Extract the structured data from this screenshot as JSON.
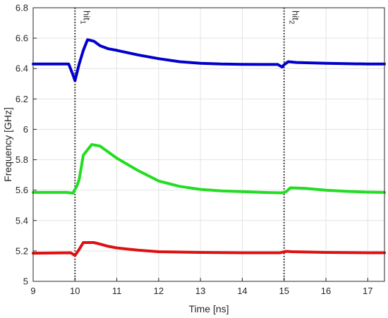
{
  "chart_data": {
    "type": "line",
    "title": "",
    "xlabel": "Time [ns]",
    "ylabel": "Frequency [GHz]",
    "xlim": [
      9,
      17.4
    ],
    "ylim": [
      5,
      6.8
    ],
    "xticks": [
      9,
      10,
      11,
      12,
      13,
      14,
      15,
      16,
      17
    ],
    "yticks": [
      5,
      5.2,
      5.4,
      5.6,
      5.8,
      6,
      6.2,
      6.4,
      6.6,
      6.8
    ],
    "xtick_labels": [
      "9",
      "10",
      "11",
      "12",
      "13",
      "14",
      "15",
      "16",
      "17"
    ],
    "ytick_labels": [
      "5",
      "5.2",
      "5.4",
      "5.6",
      "5.8",
      "6",
      "6.2",
      "6.4",
      "6.6",
      "6.8"
    ],
    "grid": true,
    "legend": "none",
    "annotations": [
      {
        "text": "hit",
        "sub": "1",
        "x": 10
      },
      {
        "text": "hit",
        "sub": "2",
        "x": 15
      }
    ],
    "series": [
      {
        "color": "#0000cc",
        "points": [
          [
            9,
            6.43
          ],
          [
            9.85,
            6.43
          ],
          [
            9.95,
            6.36
          ],
          [
            10.0,
            6.32
          ],
          [
            10.1,
            6.43
          ],
          [
            10.2,
            6.52
          ],
          [
            10.3,
            6.59
          ],
          [
            10.45,
            6.58
          ],
          [
            10.6,
            6.55
          ],
          [
            10.8,
            6.53
          ],
          [
            11,
            6.52
          ],
          [
            11.5,
            6.49
          ],
          [
            12,
            6.465
          ],
          [
            12.5,
            6.445
          ],
          [
            13,
            6.435
          ],
          [
            13.5,
            6.43
          ],
          [
            14,
            6.428
          ],
          [
            14.5,
            6.427
          ],
          [
            14.85,
            6.427
          ],
          [
            14.95,
            6.41
          ],
          [
            15.0,
            6.425
          ],
          [
            15.1,
            6.445
          ],
          [
            15.3,
            6.44
          ],
          [
            16,
            6.435
          ],
          [
            17,
            6.43
          ],
          [
            17.4,
            6.43
          ]
        ]
      },
      {
        "color": "#22dd22",
        "points": [
          [
            9,
            5.585
          ],
          [
            9.8,
            5.585
          ],
          [
            9.95,
            5.58
          ],
          [
            10.05,
            5.63
          ],
          [
            10.1,
            5.67
          ],
          [
            10.2,
            5.83
          ],
          [
            10.4,
            5.9
          ],
          [
            10.6,
            5.89
          ],
          [
            10.8,
            5.85
          ],
          [
            11,
            5.81
          ],
          [
            11.5,
            5.73
          ],
          [
            12,
            5.66
          ],
          [
            12.5,
            5.625
          ],
          [
            13,
            5.605
          ],
          [
            13.5,
            5.595
          ],
          [
            14,
            5.59
          ],
          [
            14.5,
            5.585
          ],
          [
            14.95,
            5.582
          ],
          [
            15.05,
            5.59
          ],
          [
            15.15,
            5.615
          ],
          [
            15.5,
            5.612
          ],
          [
            16,
            5.6
          ],
          [
            16.5,
            5.592
          ],
          [
            17,
            5.587
          ],
          [
            17.4,
            5.585
          ]
        ]
      },
      {
        "color": "#dd1111",
        "points": [
          [
            9,
            5.185
          ],
          [
            9.9,
            5.188
          ],
          [
            10.0,
            5.17
          ],
          [
            10.1,
            5.21
          ],
          [
            10.2,
            5.255
          ],
          [
            10.45,
            5.255
          ],
          [
            10.6,
            5.245
          ],
          [
            10.8,
            5.23
          ],
          [
            11,
            5.22
          ],
          [
            11.5,
            5.205
          ],
          [
            12,
            5.195
          ],
          [
            13,
            5.19
          ],
          [
            14,
            5.188
          ],
          [
            14.9,
            5.188
          ],
          [
            15.05,
            5.197
          ],
          [
            15.2,
            5.195
          ],
          [
            16,
            5.19
          ],
          [
            17,
            5.188
          ],
          [
            17.4,
            5.188
          ]
        ]
      }
    ]
  }
}
